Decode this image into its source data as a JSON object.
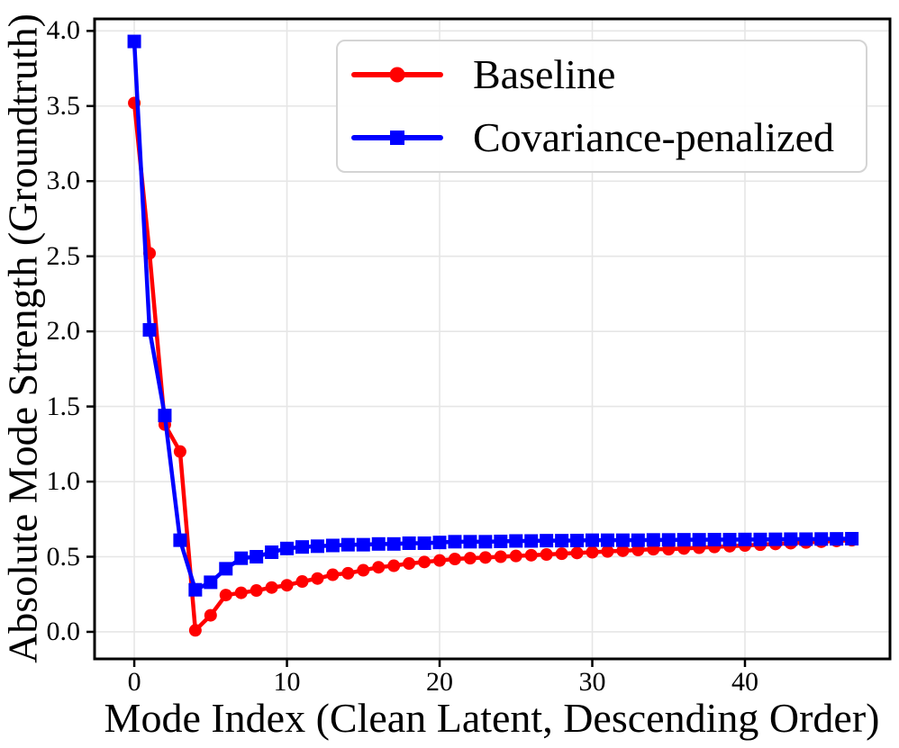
{
  "chart_data": {
    "type": "line",
    "title": "",
    "xlabel": "Mode Index (Clean Latent, Descending Order)",
    "ylabel": "Absolute Mode Strength (Groundtruth)",
    "xlim": [
      -2.6,
      49.5
    ],
    "ylim": [
      -0.18,
      4.08
    ],
    "xticks": [
      0,
      10,
      20,
      30,
      40
    ],
    "yticks": [
      0.0,
      0.5,
      1.0,
      1.5,
      2.0,
      2.5,
      3.0,
      3.5,
      4.0
    ],
    "grid": true,
    "legend_position": "upper right inside",
    "grid_color": "#e6e6e6",
    "spine_color": "#000000",
    "x": [
      0,
      1,
      2,
      3,
      4,
      5,
      6,
      7,
      8,
      9,
      10,
      11,
      12,
      13,
      14,
      15,
      16,
      17,
      18,
      19,
      20,
      21,
      22,
      23,
      24,
      25,
      26,
      27,
      28,
      29,
      30,
      31,
      32,
      33,
      34,
      35,
      36,
      37,
      38,
      39,
      40,
      41,
      42,
      43,
      44,
      45,
      46,
      47
    ],
    "series": [
      {
        "name": "Baseline",
        "color": "#ff0000",
        "marker": "circle",
        "values": [
          3.52,
          2.52,
          1.38,
          1.2,
          0.01,
          0.11,
          0.245,
          0.26,
          0.275,
          0.295,
          0.31,
          0.335,
          0.355,
          0.38,
          0.39,
          0.41,
          0.43,
          0.44,
          0.455,
          0.465,
          0.475,
          0.485,
          0.49,
          0.495,
          0.5,
          0.505,
          0.51,
          0.515,
          0.52,
          0.525,
          0.53,
          0.535,
          0.54,
          0.545,
          0.55,
          0.55,
          0.555,
          0.56,
          0.565,
          0.57,
          0.575,
          0.58,
          0.585,
          0.59,
          0.595,
          0.6,
          0.605,
          0.61
        ]
      },
      {
        "name": "Covariance-penalized",
        "color": "#0000ff",
        "marker": "square",
        "values": [
          3.93,
          2.01,
          1.44,
          0.61,
          0.28,
          0.33,
          0.42,
          0.49,
          0.5,
          0.53,
          0.555,
          0.565,
          0.57,
          0.575,
          0.58,
          0.58,
          0.585,
          0.585,
          0.59,
          0.59,
          0.595,
          0.6,
          0.6,
          0.6,
          0.602,
          0.605,
          0.605,
          0.607,
          0.607,
          0.608,
          0.61,
          0.61,
          0.61,
          0.61,
          0.612,
          0.612,
          0.613,
          0.613,
          0.614,
          0.614,
          0.615,
          0.615,
          0.616,
          0.617,
          0.617,
          0.618,
          0.619,
          0.62
        ]
      }
    ]
  }
}
